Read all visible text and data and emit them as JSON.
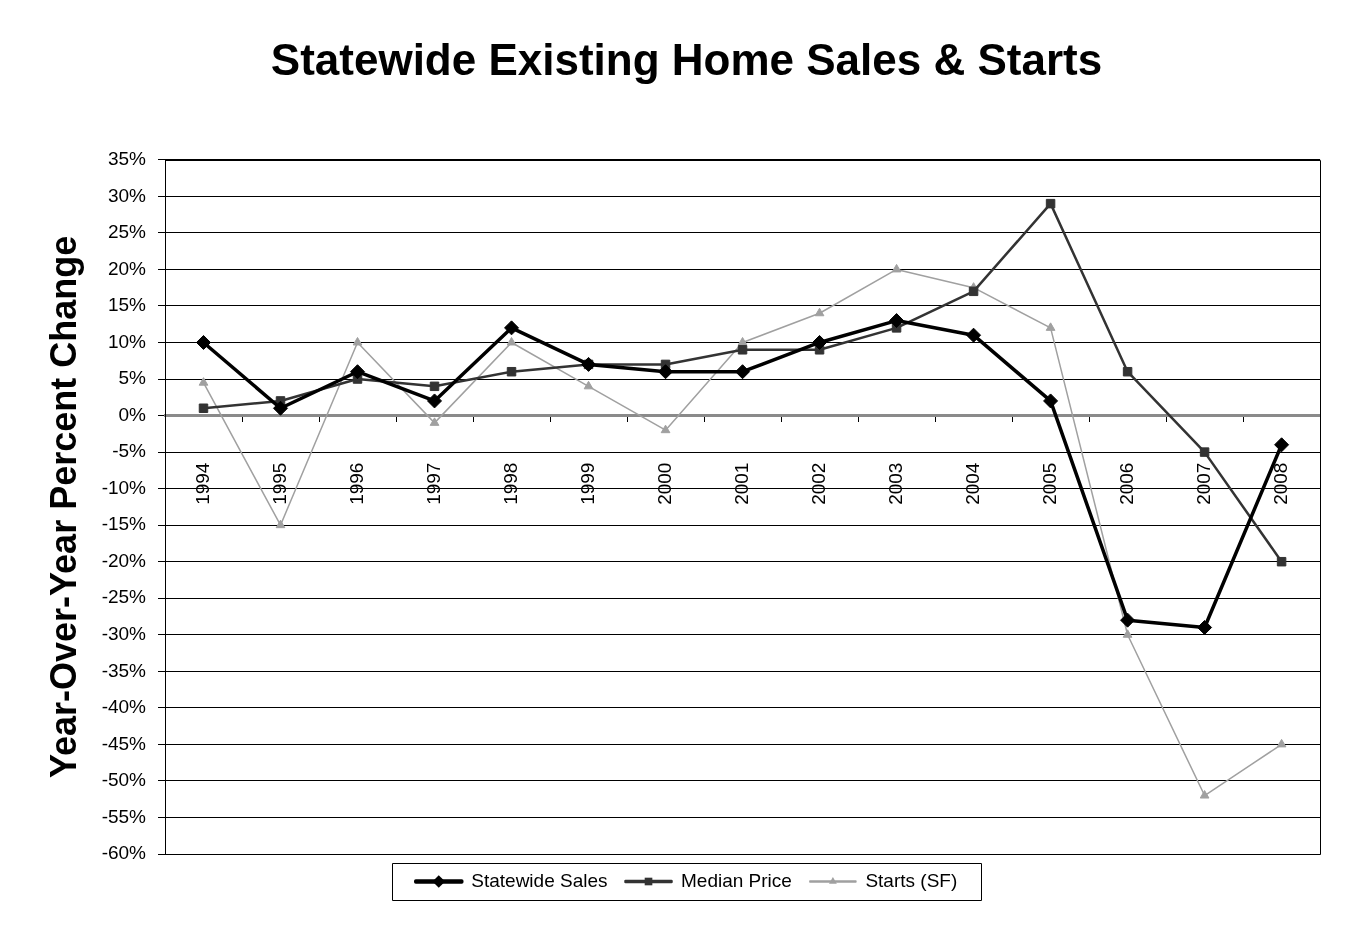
{
  "chart_data": {
    "type": "line",
    "title": "Statewide Existing Home Sales & Starts",
    "ylabel": "Year-Over-Year Percent Change",
    "categories": [
      "1994",
      "1995",
      "1996",
      "1997",
      "1998",
      "1999",
      "2000",
      "2001",
      "2002",
      "2003",
      "2004",
      "2005",
      "2006",
      "2007",
      "2008"
    ],
    "series": [
      {
        "name": "Statewide Sales",
        "color": "#000000",
        "marker": "diamond",
        "values": [
          10,
          1,
          6,
          2,
          12,
          7,
          6,
          6,
          10,
          13,
          11,
          2,
          -28,
          -29,
          -4
        ]
      },
      {
        "name": "Median Price",
        "color": "#333333",
        "marker": "square",
        "values": [
          1,
          2,
          5,
          4,
          6,
          7,
          7,
          9,
          9,
          12,
          17,
          29,
          6,
          -5,
          -20
        ]
      },
      {
        "name": "Starts (SF)",
        "color": "#a0a0a0",
        "marker": "triangle",
        "values": [
          4.5,
          -15,
          10,
          -1,
          10,
          4,
          -2,
          10,
          14,
          20,
          17.5,
          12,
          -30,
          -52,
          -45
        ]
      }
    ],
    "ylim": [
      -60,
      35
    ],
    "yticks": [
      {
        "value": 35,
        "label": "35%"
      },
      {
        "value": 30,
        "label": "30%"
      },
      {
        "value": 25,
        "label": "25%"
      },
      {
        "value": 20,
        "label": "20%"
      },
      {
        "value": 15,
        "label": "15%"
      },
      {
        "value": 10,
        "label": "10%"
      },
      {
        "value": 5,
        "label": "5%"
      },
      {
        "value": 0,
        "label": "0%"
      },
      {
        "value": -5,
        "label": "-5%"
      },
      {
        "value": -10,
        "label": "-10%"
      },
      {
        "value": -15,
        "label": "-15%"
      },
      {
        "value": -20,
        "label": "-20%"
      },
      {
        "value": -25,
        "label": "-25%"
      },
      {
        "value": -30,
        "label": "-30%"
      },
      {
        "value": -35,
        "label": "-35%"
      },
      {
        "value": -40,
        "label": "-40%"
      },
      {
        "value": -45,
        "label": "-45%"
      },
      {
        "value": -50,
        "label": "-50%"
      },
      {
        "value": -55,
        "label": "-55%"
      },
      {
        "value": -60,
        "label": "-60%"
      }
    ],
    "grid": "y",
    "legend": "bottom"
  }
}
